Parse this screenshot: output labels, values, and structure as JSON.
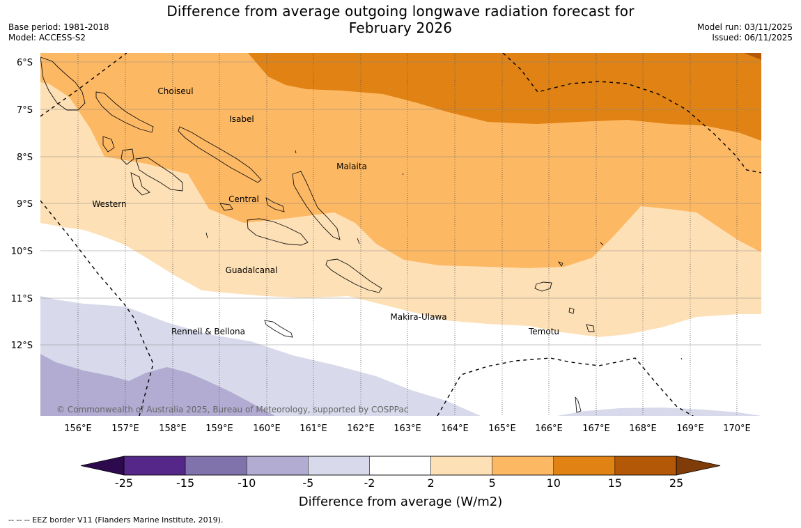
{
  "title": {
    "line1": "Difference from average outgoing longwave radiation forecast for",
    "line2": "February 2026"
  },
  "meta": {
    "base_period": "Base period: 1981-2018",
    "model": "Model: ACCESS-S2",
    "model_run": "Model run: 03/11/2025",
    "issued": "Issued: 06/11/2025"
  },
  "map": {
    "lon_labels": [
      "156°E",
      "157°E",
      "158°E",
      "159°E",
      "160°E",
      "161°E",
      "162°E",
      "163°E",
      "164°E",
      "165°E",
      "166°E",
      "167°E",
      "168°E",
      "169°E",
      "170°E"
    ],
    "lat_labels": [
      "6°S",
      "7°S",
      "8°S",
      "9°S",
      "10°S",
      "11°S",
      "12°S"
    ],
    "regions": {
      "choiseul": "Choiseul",
      "isabel": "Isabel",
      "malaita": "Malaita",
      "central": "Central",
      "western": "Western",
      "guadalcanal": "Guadalcanal",
      "makira": "Makira-Ulawa",
      "rennell": "Rennell & Bellona",
      "temotu": "Temotu"
    },
    "copyright": "© Commonwealth of Australia 2025, Bureau of Meteorology, supported by COSPPac"
  },
  "colorbar": {
    "ticks": [
      "-25",
      "-15",
      "-10",
      "-5",
      "-2",
      "2",
      "5",
      "10",
      "15",
      "25"
    ],
    "colors": [
      "#2d0a4e",
      "#542788",
      "#8073ac",
      "#b2abd2",
      "#d8daeb",
      "#ffffff",
      "#fee0b6",
      "#fdb863",
      "#e08214",
      "#b35806",
      "#7f3b08"
    ],
    "label": "Difference from average (W/m2)"
  },
  "footnote": "--  --  -- EEZ border V11 (Flanders Marine Institute, 2019)."
}
